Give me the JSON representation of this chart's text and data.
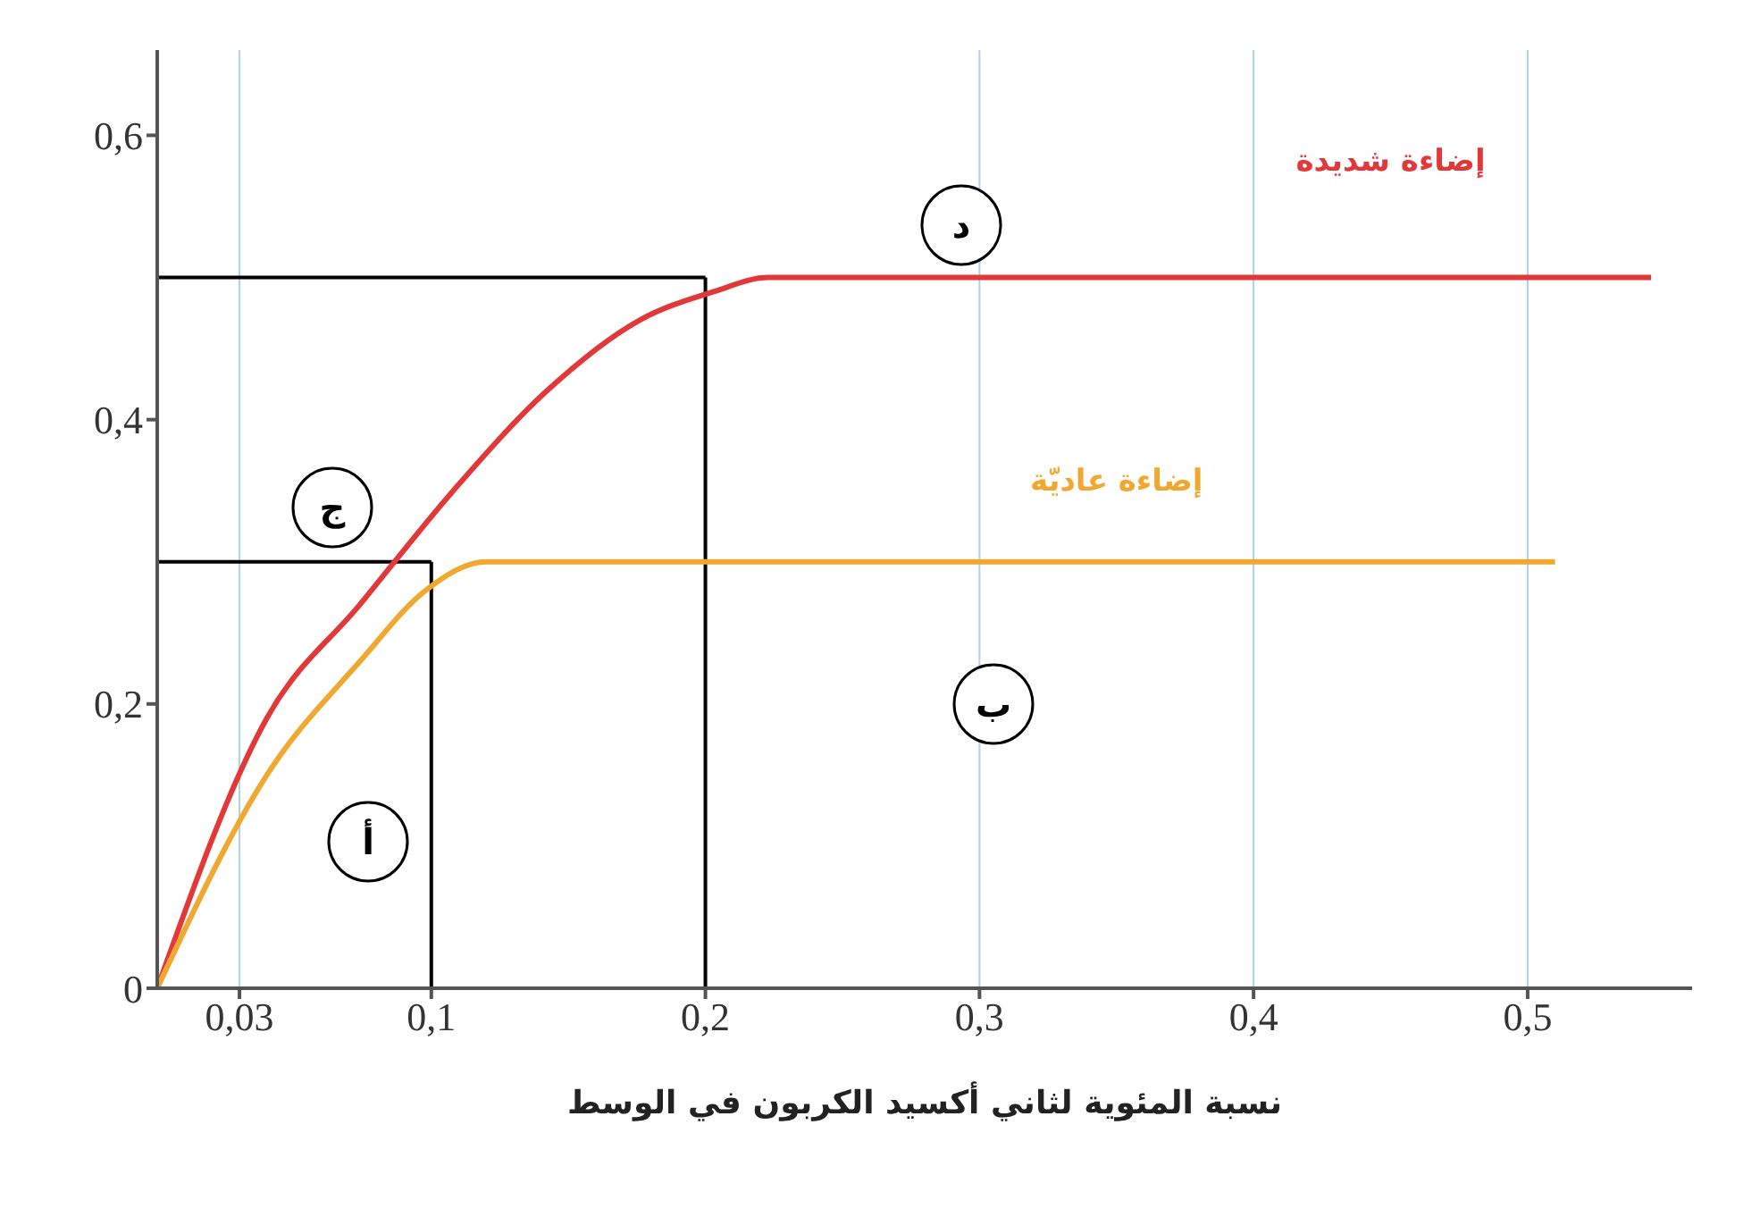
{
  "chart_data": {
    "type": "line",
    "xlabel": "نسبة المئوية لثاني أكسيد الكربون في الوسط",
    "series": [
      {
        "name": "إضاءة شديدة",
        "color": "#e2383a",
        "x": [
          0,
          0.04,
          0.074,
          0.108,
          0.142,
          0.176,
          0.203,
          0.223,
          0.45,
          0.545
        ],
        "values": [
          0,
          0.19,
          0.27,
          0.35,
          0.42,
          0.47,
          0.49,
          0.5,
          0.5,
          0.5
        ]
      },
      {
        "name": "إضاءة عاديّة",
        "color": "#f0a830",
        "x": [
          0,
          0.04,
          0.074,
          0.098,
          0.12,
          0.135,
          0.35,
          0.51
        ],
        "values": [
          0,
          0.15,
          0.23,
          0.28,
          0.3,
          0.3,
          0.3,
          0.3
        ]
      }
    ],
    "xlim": [
      0,
      0.56
    ],
    "xticks": [
      {
        "value": 0.03,
        "label": "0,03"
      },
      {
        "value": 0.1,
        "label": "0,1"
      },
      {
        "value": 0.2,
        "label": "0,2"
      },
      {
        "value": 0.3,
        "label": "0,3"
      },
      {
        "value": 0.4,
        "label": "0,4"
      },
      {
        "value": 0.5,
        "label": "0,5"
      }
    ],
    "ylim": [
      0,
      0.66
    ],
    "yticks": [
      {
        "value": 0,
        "label": "0"
      },
      {
        "value": 0.2,
        "label": "0,2"
      },
      {
        "value": 0.4,
        "label": "0,4"
      },
      {
        "value": 0.6,
        "label": "0,6"
      }
    ],
    "ref_lines": [
      {
        "axis": "x",
        "value": 0.1,
        "color": "#000000"
      },
      {
        "axis": "x",
        "value": 0.2,
        "color": "#000000"
      },
      {
        "axis": "y",
        "value": 0.3,
        "color": "#000000"
      },
      {
        "axis": "y",
        "value": 0.5,
        "color": "#000000"
      }
    ],
    "annotations": [
      "أ",
      "ب",
      "ج",
      "د"
    ],
    "grid": true,
    "marker": "none",
    "line_style": "solid"
  }
}
